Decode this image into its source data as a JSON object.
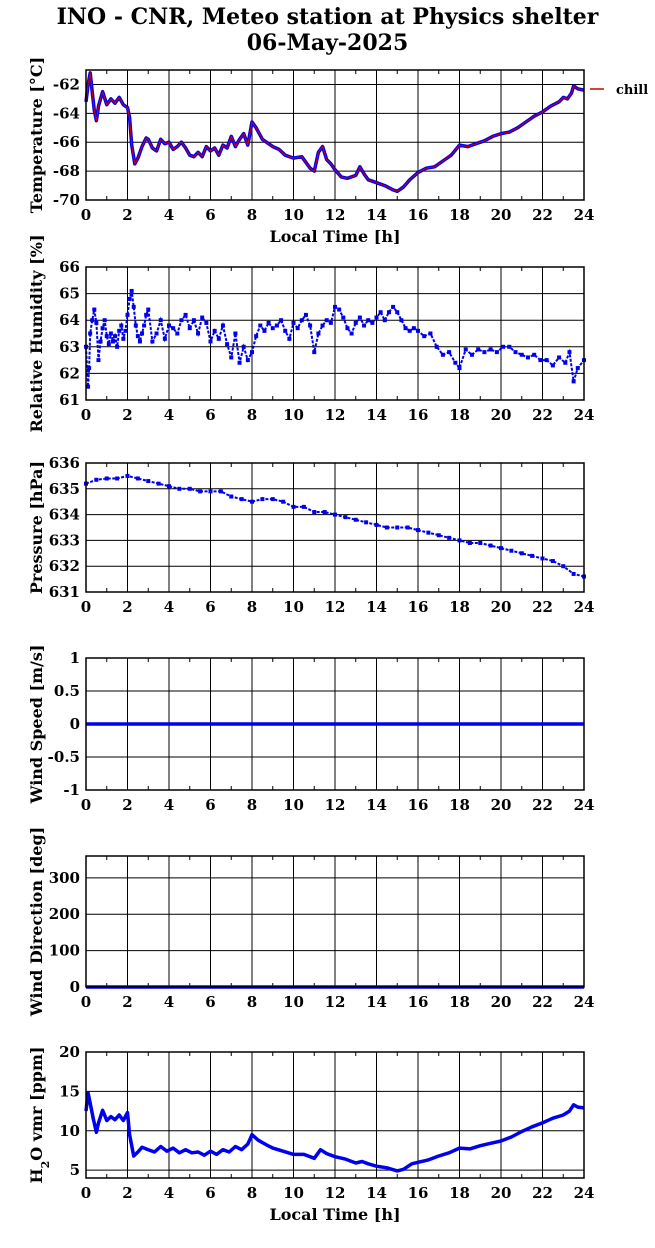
{
  "page": {
    "title_line1": "INO - CNR, Meteo station at Physics shelter",
    "title_line2": "06-May-2025"
  },
  "colors": {
    "data": "#0000ee",
    "chill": "#cc0000",
    "axis": "#000000",
    "grid": "#000000"
  },
  "chart_data": [
    {
      "type": "line",
      "ylabel": "Temperature [°C]",
      "xlabel": "Local Time [h]",
      "xlim": [
        0,
        24
      ],
      "ylim": [
        -70,
        -61
      ],
      "xticks": [
        0,
        2,
        4,
        6,
        8,
        10,
        12,
        14,
        16,
        18,
        20,
        22,
        24
      ],
      "yticks": [
        -70,
        -68,
        -66,
        -64,
        -62
      ],
      "grid": true,
      "legend": {
        "entries": [
          "chill"
        ],
        "placement": "top-right outside"
      },
      "series": [
        {
          "name": "temperature",
          "x": [
            0,
            0.1,
            0.2,
            0.3,
            0.4,
            0.5,
            0.6,
            0.8,
            1.0,
            1.2,
            1.4,
            1.6,
            1.8,
            2.0,
            2.1,
            2.2,
            2.35,
            2.5,
            2.7,
            2.9,
            3.0,
            3.2,
            3.4,
            3.6,
            3.8,
            4.0,
            4.2,
            4.4,
            4.6,
            4.8,
            5.0,
            5.2,
            5.4,
            5.6,
            5.8,
            6.0,
            6.2,
            6.4,
            6.6,
            6.8,
            7.0,
            7.2,
            7.4,
            7.6,
            7.8,
            8.0,
            8.2,
            8.5,
            8.8,
            9.0,
            9.3,
            9.6,
            10.0,
            10.4,
            10.8,
            11.0,
            11.2,
            11.4,
            11.6,
            11.8,
            12.0,
            12.3,
            12.6,
            13.0,
            13.2,
            13.4,
            13.6,
            13.8,
            14.0,
            14.4,
            14.8,
            15.0,
            15.3,
            15.6,
            16.0,
            16.4,
            16.8,
            17.2,
            17.6,
            18.0,
            18.4,
            18.8,
            19.2,
            19.6,
            20.0,
            20.4,
            20.8,
            21.2,
            21.6,
            22.0,
            22.4,
            22.8,
            23.0,
            23.2,
            23.4,
            23.5,
            23.7,
            24.0
          ],
          "values": [
            -63.2,
            -62.0,
            -61.2,
            -62.5,
            -63.8,
            -64.5,
            -63.5,
            -62.5,
            -63.4,
            -63.0,
            -63.3,
            -62.9,
            -63.4,
            -63.6,
            -64.3,
            -66.2,
            -67.5,
            -67.1,
            -66.3,
            -65.7,
            -65.8,
            -66.4,
            -66.6,
            -65.8,
            -66.1,
            -66.0,
            -66.5,
            -66.3,
            -66.0,
            -66.4,
            -66.9,
            -67.0,
            -66.7,
            -67.0,
            -66.3,
            -66.6,
            -66.4,
            -66.9,
            -66.2,
            -66.4,
            -65.6,
            -66.3,
            -65.8,
            -65.4,
            -66.2,
            -64.6,
            -65.0,
            -65.8,
            -66.1,
            -66.3,
            -66.5,
            -66.9,
            -67.1,
            -67.0,
            -67.8,
            -68.0,
            -66.7,
            -66.3,
            -67.2,
            -67.5,
            -67.9,
            -68.4,
            -68.5,
            -68.3,
            -67.7,
            -68.2,
            -68.6,
            -68.7,
            -68.8,
            -69.0,
            -69.3,
            -69.4,
            -69.1,
            -68.6,
            -68.1,
            -67.8,
            -67.7,
            -67.3,
            -66.9,
            -66.2,
            -66.3,
            -66.1,
            -65.9,
            -65.6,
            -65.4,
            -65.3,
            -65.0,
            -64.6,
            -64.2,
            -63.9,
            -63.5,
            -63.2,
            -62.9,
            -63.0,
            -62.6,
            -62.1,
            -62.3,
            -62.4
          ]
        }
      ]
    },
    {
      "type": "scatter",
      "ylabel": "Relative Humidity [%]",
      "xlim": [
        0,
        24
      ],
      "ylim": [
        61,
        66
      ],
      "xticks": [
        0,
        2,
        4,
        6,
        8,
        10,
        12,
        14,
        16,
        18,
        20,
        22,
        24
      ],
      "yticks": [
        61,
        62,
        63,
        64,
        65,
        66
      ],
      "grid": true,
      "series": [
        {
          "name": "humidity",
          "x": [
            0,
            0.1,
            0.15,
            0.2,
            0.3,
            0.4,
            0.5,
            0.6,
            0.7,
            0.8,
            0.9,
            1.0,
            1.1,
            1.2,
            1.3,
            1.4,
            1.5,
            1.6,
            1.7,
            1.8,
            1.9,
            2.0,
            2.1,
            2.2,
            2.3,
            2.4,
            2.5,
            2.6,
            2.7,
            2.8,
            2.9,
            3.0,
            3.2,
            3.4,
            3.6,
            3.8,
            4.0,
            4.2,
            4.4,
            4.6,
            4.8,
            5.0,
            5.2,
            5.4,
            5.6,
            5.8,
            6.0,
            6.2,
            6.4,
            6.6,
            6.8,
            7.0,
            7.2,
            7.4,
            7.6,
            7.8,
            8.0,
            8.2,
            8.4,
            8.6,
            8.8,
            9.0,
            9.2,
            9.4,
            9.6,
            9.8,
            10.0,
            10.2,
            10.4,
            10.6,
            10.8,
            11.0,
            11.2,
            11.4,
            11.6,
            11.8,
            12.0,
            12.2,
            12.4,
            12.6,
            12.8,
            13.0,
            13.2,
            13.4,
            13.6,
            13.8,
            14.0,
            14.2,
            14.4,
            14.6,
            14.8,
            15.0,
            15.2,
            15.4,
            15.6,
            15.8,
            16.0,
            16.3,
            16.6,
            16.9,
            17.2,
            17.5,
            17.8,
            18.0,
            18.3,
            18.6,
            18.9,
            19.2,
            19.5,
            19.8,
            20.1,
            20.4,
            20.7,
            21.0,
            21.3,
            21.6,
            21.9,
            22.2,
            22.5,
            22.8,
            23.1,
            23.3,
            23.5,
            23.7,
            24.0
          ],
          "values": [
            63.0,
            61.5,
            62.2,
            63.5,
            64.0,
            64.4,
            63.9,
            62.5,
            63.2,
            63.7,
            64.0,
            63.4,
            63.1,
            63.5,
            63.2,
            63.4,
            63.0,
            63.6,
            63.8,
            63.3,
            63.6,
            64.2,
            64.8,
            65.1,
            64.5,
            63.8,
            63.4,
            63.2,
            63.5,
            63.8,
            64.2,
            64.4,
            63.2,
            63.5,
            64.0,
            63.3,
            63.8,
            63.7,
            63.5,
            64.0,
            64.2,
            63.7,
            64.0,
            63.5,
            64.1,
            63.9,
            63.2,
            63.6,
            63.3,
            63.8,
            63.1,
            62.6,
            63.5,
            62.4,
            63.0,
            62.5,
            62.8,
            63.4,
            63.8,
            63.6,
            63.9,
            63.7,
            63.8,
            64.0,
            63.6,
            63.3,
            63.9,
            63.7,
            64.0,
            64.2,
            63.8,
            62.8,
            63.5,
            63.8,
            64.0,
            63.9,
            64.5,
            64.4,
            64.1,
            63.7,
            63.5,
            63.9,
            64.1,
            63.8,
            64.0,
            63.9,
            64.1,
            64.3,
            64.0,
            64.3,
            64.5,
            64.3,
            64.0,
            63.7,
            63.6,
            63.7,
            63.6,
            63.4,
            63.5,
            63.0,
            62.7,
            62.8,
            62.4,
            62.2,
            62.9,
            62.7,
            62.9,
            62.8,
            62.9,
            62.8,
            63.0,
            63.0,
            62.8,
            62.7,
            62.6,
            62.7,
            62.5,
            62.5,
            62.3,
            62.6,
            62.4,
            62.8,
            61.7,
            62.2,
            62.5
          ]
        }
      ]
    },
    {
      "type": "scatter",
      "ylabel": "Pressure [hPa]",
      "xlim": [
        0,
        24
      ],
      "ylim": [
        631,
        636
      ],
      "xticks": [
        0,
        2,
        4,
        6,
        8,
        10,
        12,
        14,
        16,
        18,
        20,
        22,
        24
      ],
      "yticks": [
        631,
        632,
        633,
        634,
        635,
        636
      ],
      "grid": true,
      "series": [
        {
          "name": "pressure",
          "x": [
            0,
            0.5,
            1.0,
            1.5,
            2.0,
            2.5,
            3.0,
            3.5,
            4.0,
            4.5,
            5.0,
            5.5,
            6.0,
            6.5,
            7.0,
            7.5,
            8.0,
            8.5,
            9.0,
            9.5,
            10.0,
            10.5,
            11.0,
            11.5,
            12.0,
            12.5,
            13.0,
            13.5,
            14.0,
            14.5,
            15.0,
            15.5,
            16.0,
            16.5,
            17.0,
            17.5,
            18.0,
            18.5,
            19.0,
            19.5,
            20.0,
            20.5,
            21.0,
            21.5,
            22.0,
            22.5,
            23.0,
            23.5,
            24.0
          ],
          "values": [
            635.2,
            635.35,
            635.4,
            635.4,
            635.5,
            635.4,
            635.3,
            635.2,
            635.1,
            635.0,
            635.0,
            634.9,
            634.9,
            634.9,
            634.7,
            634.6,
            634.5,
            634.6,
            634.6,
            634.5,
            634.3,
            634.3,
            634.1,
            634.1,
            634.0,
            633.9,
            633.8,
            633.7,
            633.6,
            633.5,
            633.5,
            633.5,
            633.4,
            633.3,
            633.2,
            633.1,
            633.0,
            632.9,
            632.9,
            632.8,
            632.7,
            632.6,
            632.5,
            632.4,
            632.3,
            632.2,
            632.0,
            631.7,
            631.6
          ]
        }
      ]
    },
    {
      "type": "line",
      "ylabel": "Wind Speed [m/s]",
      "xlim": [
        0,
        24
      ],
      "ylim": [
        -1,
        1
      ],
      "xticks": [
        0,
        2,
        4,
        6,
        8,
        10,
        12,
        14,
        16,
        18,
        20,
        22,
        24
      ],
      "yticks": [
        -1,
        -0.5,
        0,
        0.5,
        1
      ],
      "grid": true,
      "series": [
        {
          "name": "wind speed",
          "x": [
            0,
            24
          ],
          "values": [
            0,
            0
          ]
        }
      ]
    },
    {
      "type": "line",
      "ylabel": "Wind Direction [deg]",
      "xlim": [
        0,
        24
      ],
      "ylim": [
        0,
        360
      ],
      "xticks": [
        0,
        2,
        4,
        6,
        8,
        10,
        12,
        14,
        16,
        18,
        20,
        22,
        24
      ],
      "yticks": [
        0,
        100,
        200,
        300
      ],
      "grid": true,
      "series": [
        {
          "name": "wind direction",
          "x": [
            0,
            24
          ],
          "values": [
            0,
            0
          ]
        }
      ]
    },
    {
      "type": "line",
      "ylabel": "H",
      "ylabel_sub": "2",
      "ylabel_rest": "O vmr [ppm]",
      "xlabel": "Local Time [h]",
      "xlim": [
        0,
        24
      ],
      "ylim": [
        4,
        20
      ],
      "xticks": [
        0,
        2,
        4,
        6,
        8,
        10,
        12,
        14,
        16,
        18,
        20,
        22,
        24
      ],
      "yticks": [
        5,
        10,
        15,
        20
      ],
      "grid": true,
      "series": [
        {
          "name": "h2o",
          "x": [
            0,
            0.1,
            0.2,
            0.35,
            0.5,
            0.6,
            0.8,
            1.0,
            1.2,
            1.4,
            1.6,
            1.8,
            2.0,
            2.1,
            2.3,
            2.5,
            2.7,
            3.0,
            3.3,
            3.6,
            3.9,
            4.2,
            4.5,
            4.8,
            5.1,
            5.4,
            5.7,
            6.0,
            6.3,
            6.6,
            6.9,
            7.2,
            7.5,
            7.8,
            8.0,
            8.3,
            8.7,
            9.0,
            9.5,
            10.0,
            10.5,
            11.0,
            11.3,
            11.6,
            12.0,
            12.5,
            13.0,
            13.3,
            13.6,
            14.0,
            14.5,
            15.0,
            15.3,
            15.7,
            16.0,
            16.5,
            17.0,
            17.5,
            18.0,
            18.5,
            19.0,
            19.5,
            20.0,
            20.5,
            21.0,
            21.5,
            22.0,
            22.5,
            23.0,
            23.3,
            23.5,
            23.7,
            24.0
          ],
          "values": [
            12.5,
            14.8,
            13.5,
            11.5,
            9.8,
            11.0,
            12.6,
            11.3,
            11.8,
            11.4,
            12.0,
            11.3,
            12.3,
            9.5,
            6.8,
            7.3,
            7.9,
            7.6,
            7.3,
            8.0,
            7.4,
            7.8,
            7.2,
            7.6,
            7.2,
            7.3,
            6.9,
            7.4,
            7.0,
            7.6,
            7.3,
            8.0,
            7.6,
            8.3,
            9.5,
            8.8,
            8.2,
            7.8,
            7.4,
            7.0,
            7.0,
            6.5,
            7.6,
            7.1,
            6.7,
            6.4,
            5.9,
            6.1,
            5.8,
            5.5,
            5.3,
            4.9,
            5.1,
            5.8,
            6.0,
            6.3,
            6.8,
            7.2,
            7.8,
            7.7,
            8.1,
            8.4,
            8.7,
            9.2,
            9.9,
            10.5,
            11.0,
            11.6,
            12.0,
            12.5,
            13.3,
            13.0,
            12.9
          ]
        }
      ]
    }
  ]
}
